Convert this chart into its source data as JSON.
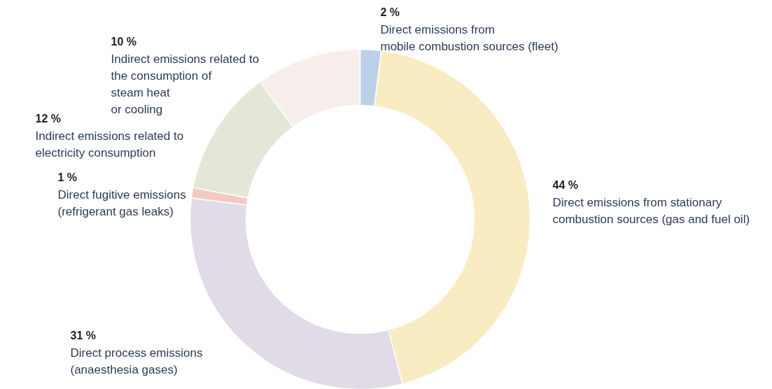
{
  "chart_data": {
    "type": "donut",
    "categories": [
      "Direct emissions from\nmobile combustion sources (fleet)",
      "Direct emissions from stationary\ncombustion sources (gas and fuel oil)",
      "Direct process emissions\n(anaesthesia gases)",
      "Direct fugitive emissions\n(refrigerant gas leaks)",
      "Indirect emissions related to\nelectricity consumption",
      "Indirect emissions related to\nthe consumption of\nsteam heat\nor cooling"
    ],
    "values": [
      2,
      44,
      31,
      1,
      12,
      10
    ],
    "colors": [
      "#bcd0ea",
      "#f9ebc2",
      "#e0dbe7",
      "#f4c8c3",
      "#e2e7d8",
      "#f7eeec"
    ],
    "value_labels": [
      "2 %",
      "44 %",
      "31 %",
      "1 %",
      "12 %",
      "10 %"
    ]
  }
}
